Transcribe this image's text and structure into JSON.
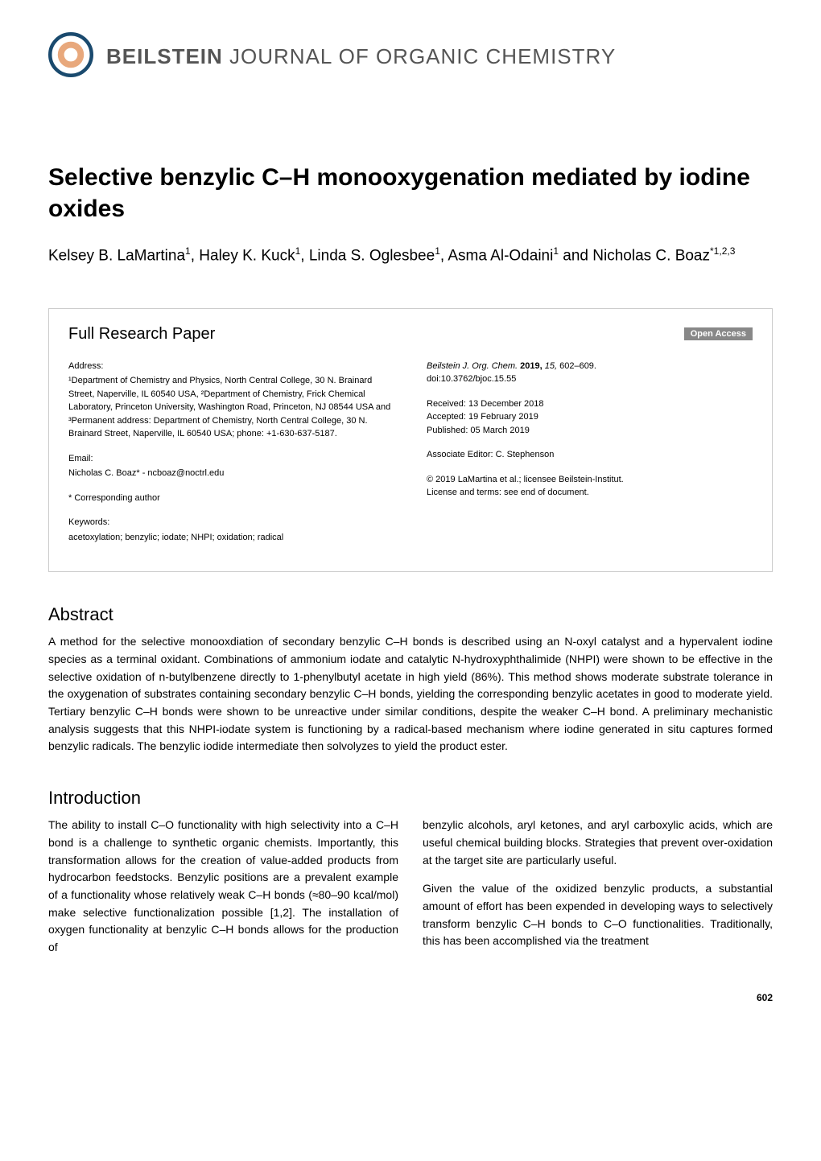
{
  "journal": {
    "name_bold": "BEILSTEIN",
    "name_rest": " JOURNAL OF ORGANIC CHEMISTRY",
    "logo_colors": {
      "outer": "#1a4a6e",
      "inner": "#e8a87c"
    }
  },
  "title": "Selective benzylic C–H monooxygenation mediated by iodine oxides",
  "authors_html": "Kelsey B. LaMartina<sup>1</sup>, Haley K. Kuck<sup>1</sup>, Linda S. Oglesbee<sup>1</sup>, Asma Al-Odaini<sup>1</sup> and Nicholas C. Boaz<sup>*1,2,3</sup>",
  "info": {
    "paper_type": "Full Research Paper",
    "open_access": "Open Access",
    "left": {
      "address_label": "Address:",
      "address": "¹Department of Chemistry and Physics, North Central College, 30 N. Brainard Street, Naperville, IL 60540 USA, ²Department of Chemistry, Frick Chemical Laboratory, Princeton University, Washington Road, Princeton, NJ 08544 USA and ³Permanent address: Department of Chemistry, North Central College, 30 N. Brainard Street, Naperville, IL 60540 USA; phone: +1-630-637-5187.",
      "email_label": "Email:",
      "email_line": "Nicholas C. Boaz* - ncboaz@noctrl.edu",
      "corresponding": "* Corresponding author",
      "keywords_label": "Keywords:",
      "keywords": "acetoxylation; benzylic; iodate; NHPI; oxidation; radical"
    },
    "right": {
      "citation_html": "<span class='italic'>Beilstein J. Org. Chem.</span> <b>2019,</b> <span class='italic'>15,</span> 602–609.",
      "doi": "doi:10.3762/bjoc.15.55",
      "received": "Received: 13 December 2018",
      "accepted": "Accepted: 19 February 2019",
      "published": "Published: 05 March 2019",
      "editor": "Associate Editor: C. Stephenson",
      "copyright": "© 2019 LaMartina et al.; licensee Beilstein-Institut.",
      "license": "License and terms: see end of document."
    }
  },
  "abstract": {
    "title": "Abstract",
    "text": "A method for the selective monooxdiation of secondary benzylic C–H bonds is described using an N-oxyl catalyst and a hypervalent iodine species as a terminal oxidant. Combinations of ammonium iodate and catalytic N-hydroxyphthalimide (NHPI) were shown to be effective in the selective oxidation of n-butylbenzene directly to 1-phenylbutyl acetate in high yield (86%). This method shows moderate substrate tolerance in the oxygenation of substrates containing secondary benzylic C–H bonds, yielding the corresponding benzylic acetates in good to moderate yield. Tertiary benzylic C–H bonds were shown to be unreactive under similar conditions, despite the weaker C–H bond. A preliminary mechanistic analysis suggests that this NHPI-iodate system is functioning by a radical-based mechanism where iodine generated in situ captures formed benzylic radicals. The benzylic iodide intermediate then solvolyzes to yield the product ester."
  },
  "introduction": {
    "title": "Introduction",
    "col1": "The ability to install C–O functionality with high selectivity into a C–H bond is a challenge to synthetic organic chemists. Importantly, this transformation allows for the creation of value-added products from hydrocarbon feedstocks. Benzylic positions are a prevalent example of a functionality whose relatively weak C–H bonds (≈80–90 kcal/mol) make selective functionalization possible [1,2]. The installation of oxygen functionality at benzylic C–H bonds allows for the production of",
    "col2_p1": "benzylic alcohols, aryl ketones, and aryl carboxylic acids, which are useful chemical building blocks. Strategies that prevent over-oxidation at the target site are particularly useful.",
    "col2_p2": "Given the value of the oxidized benzylic products, a substantial amount of effort has been expended in developing ways to selectively transform benzylic C–H bonds to C–O functionalities. Traditionally, this has been accomplished via the treatment"
  },
  "page_number": "602",
  "colors": {
    "text": "#000000",
    "bg": "#ffffff",
    "border": "#cccccc",
    "open_access_bg": "#888888",
    "journal_name": "#555555"
  }
}
